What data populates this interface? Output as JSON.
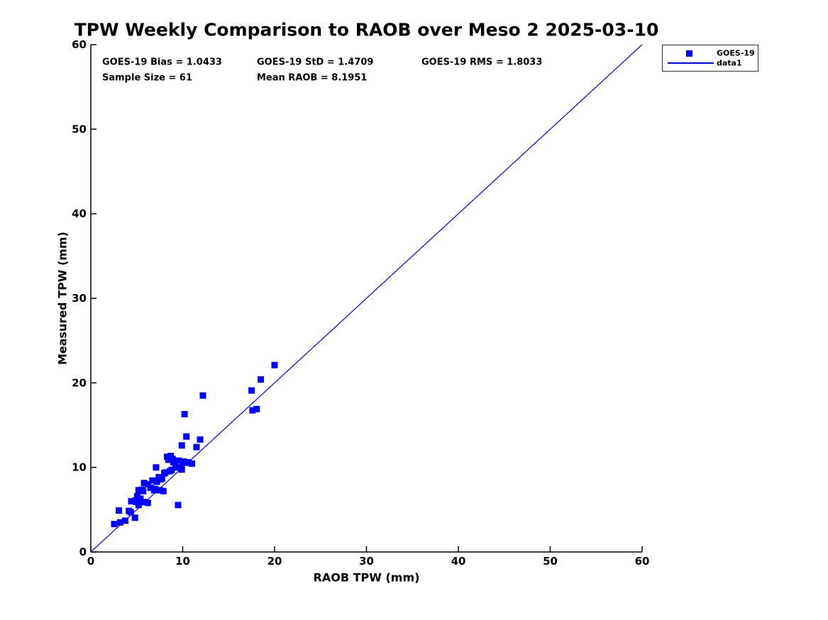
{
  "title": "TPW Weekly Comparison to RAOB over Meso 2 2025-03-10",
  "stats": {
    "bias": "GOES-19 Bias = 1.0433",
    "std": "GOES-19 StD = 1.4709",
    "rms": "GOES-19 RMS = 1.8033",
    "sample_size": "Sample Size = 61",
    "mean_raob": "Mean RAOB = 8.1951"
  },
  "axes": {
    "xlabel": "RAOB TPW (mm)",
    "ylabel": "Measured TPW (mm)",
    "xlim": [
      0,
      60
    ],
    "ylim": [
      0,
      60
    ],
    "xticks": [
      0,
      10,
      20,
      30,
      40,
      50,
      60
    ],
    "yticks": [
      0,
      10,
      20,
      30,
      40,
      50,
      60
    ]
  },
  "legend": {
    "items": [
      {
        "label": "GOES-19",
        "type": "marker"
      },
      {
        "label": "data1",
        "type": "line"
      }
    ]
  },
  "colors": {
    "marker": "#0000ff",
    "line": "#0000dd",
    "axis": "#000000",
    "text": "#000000"
  },
  "chart_data": {
    "type": "scatter",
    "title": "TPW Weekly Comparison to RAOB over Meso 2 2025-03-10",
    "xlabel": "RAOB TPW (mm)",
    "ylabel": "Measured TPW (mm)",
    "xlim": [
      0,
      60
    ],
    "ylim": [
      0,
      60
    ],
    "grid": false,
    "legend_position": "top-right-outside",
    "annotations": [
      "GOES-19 Bias = 1.0433",
      "GOES-19 StD = 1.4709",
      "GOES-19 RMS = 1.8033",
      "Sample Size = 61",
      "Mean RAOB = 8.1951"
    ],
    "series": [
      {
        "name": "GOES-19",
        "type": "scatter",
        "marker": "square",
        "color": "#0000ff",
        "points": [
          [
            20.0,
            22.1
          ],
          [
            18.5,
            20.4
          ],
          [
            17.5,
            19.1
          ],
          [
            18.05,
            16.9
          ],
          [
            17.6,
            16.75
          ],
          [
            12.2,
            18.5
          ],
          [
            10.2,
            16.3
          ],
          [
            10.4,
            13.65
          ],
          [
            11.9,
            13.3
          ],
          [
            9.9,
            12.6
          ],
          [
            11.5,
            12.4
          ],
          [
            8.3,
            11.25
          ],
          [
            8.7,
            11.35
          ],
          [
            8.9,
            11.0
          ],
          [
            8.45,
            10.9
          ],
          [
            9.0,
            10.6
          ],
          [
            9.15,
            10.75
          ],
          [
            9.55,
            10.8
          ],
          [
            10.1,
            10.7
          ],
          [
            10.3,
            10.55
          ],
          [
            10.6,
            10.6
          ],
          [
            11.0,
            10.45
          ],
          [
            7.1,
            10.0
          ],
          [
            9.2,
            10.0
          ],
          [
            9.7,
            10.0
          ],
          [
            9.9,
            9.75
          ],
          [
            8.0,
            9.3
          ],
          [
            8.1,
            9.4
          ],
          [
            8.6,
            9.55
          ],
          [
            8.8,
            9.7
          ],
          [
            7.4,
            8.85
          ],
          [
            7.6,
            8.6
          ],
          [
            7.75,
            8.7
          ],
          [
            6.7,
            8.45
          ],
          [
            7.2,
            8.3
          ],
          [
            5.8,
            8.15
          ],
          [
            6.2,
            8.0
          ],
          [
            5.2,
            7.3
          ],
          [
            5.5,
            7.35
          ],
          [
            5.7,
            7.2
          ],
          [
            6.5,
            7.6
          ],
          [
            6.9,
            7.3
          ],
          [
            7.0,
            7.45
          ],
          [
            7.5,
            7.3
          ],
          [
            7.9,
            7.2
          ],
          [
            5.05,
            6.6
          ],
          [
            4.4,
            6.0
          ],
          [
            4.9,
            6.1
          ],
          [
            5.0,
            5.9
          ],
          [
            5.4,
            6.3
          ],
          [
            5.2,
            5.55
          ],
          [
            5.8,
            5.9
          ],
          [
            6.2,
            5.8
          ],
          [
            9.5,
            5.55
          ],
          [
            3.05,
            4.9
          ],
          [
            4.15,
            4.85
          ],
          [
            4.35,
            4.7
          ],
          [
            4.8,
            4.05
          ],
          [
            3.75,
            3.7
          ],
          [
            3.2,
            3.5
          ],
          [
            2.55,
            3.3
          ]
        ]
      },
      {
        "name": "data1",
        "type": "line",
        "color": "#0000dd",
        "points": [
          [
            0,
            0
          ],
          [
            60,
            60
          ]
        ]
      }
    ]
  }
}
